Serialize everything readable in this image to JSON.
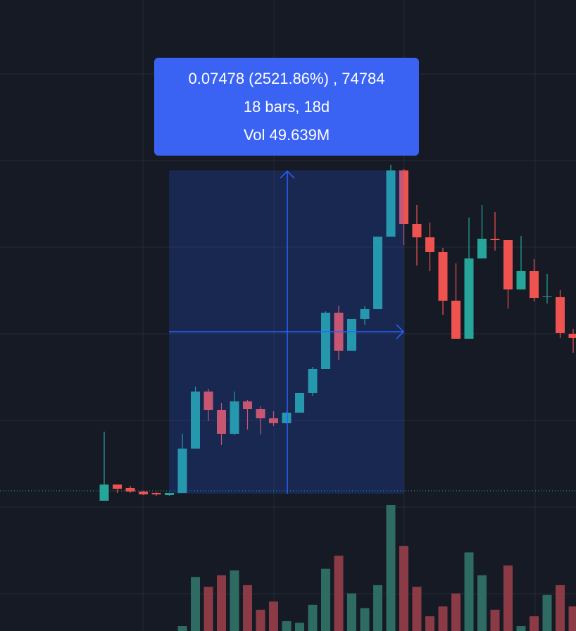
{
  "measure": {
    "line1": "0.07478 (2521.86%) , 74784",
    "line2": "18 bars, 18d",
    "line3": "Vol 49.639M"
  },
  "chart_data": {
    "type": "candlestick",
    "up_color": "#26a69a",
    "down_color": "#ef5350",
    "up_volume_color": "#2e6b63",
    "down_volume_color": "#8a3b45",
    "ylim": [
      -0.0003,
      0.11728
    ],
    "y2lim": [
      0,
      8
    ],
    "open": [
      0.00117,
      0.00493,
      0.00411,
      0.0033,
      0.00297,
      0.00248,
      0.00297,
      0.01326,
      0.02649,
      0.02224,
      0.01669,
      0.0242,
      0.0224,
      0.02028,
      0.01914,
      0.02159,
      0.02616,
      0.03171,
      0.04477,
      0.03596,
      0.04331,
      0.04559,
      0.06241,
      0.07776,
      0.06535,
      0.06225,
      0.05882,
      0.04755,
      0.03873,
      0.05735,
      0.06192,
      0.06159,
      0.05016,
      0.05441,
      0.04837,
      0.04837,
      0.03988
    ],
    "high": [
      0.01718,
      0.00493,
      0.0046,
      0.00346,
      0.00313,
      0.00297,
      0.01669,
      0.02763,
      0.02714,
      0.02387,
      0.02649,
      0.02453,
      0.02306,
      0.02191,
      0.02175,
      0.02616,
      0.0322,
      0.0451,
      0.04641,
      0.04331,
      0.04624,
      0.06241,
      0.07907,
      0.07809,
      0.06976,
      0.06568,
      0.0598,
      0.05621,
      0.06682,
      0.06976,
      0.06813,
      0.06159,
      0.06257,
      0.05719,
      0.05376,
      0.05,
      0.04102
    ],
    "low": [
      0.00117,
      0.00297,
      0.00297,
      0.00248,
      0.00232,
      0.00232,
      0.00297,
      0.01326,
      0.01963,
      0.01407,
      0.01636,
      0.01767,
      0.01652,
      0.01848,
      0.01914,
      0.02159,
      0.02551,
      0.03171,
      0.03383,
      0.03596,
      0.042,
      0.04559,
      0.06241,
      0.06045,
      0.05572,
      0.05441,
      0.04428,
      0.03873,
      0.03873,
      0.05735,
      0.05915,
      0.04575,
      0.05016,
      0.04739,
      0.0469,
      0.0389,
      0.03547
    ],
    "close": [
      0.00493,
      0.00395,
      0.0033,
      0.00264,
      0.00264,
      0.00297,
      0.01326,
      0.02649,
      0.02224,
      0.01669,
      0.0242,
      0.0224,
      0.02028,
      0.01914,
      0.02159,
      0.02616,
      0.03171,
      0.04477,
      0.03596,
      0.04331,
      0.04559,
      0.06241,
      0.07776,
      0.06535,
      0.06225,
      0.05882,
      0.04755,
      0.03873,
      0.05735,
      0.06192,
      0.06159,
      0.05016,
      0.05441,
      0.0482,
      0.04853,
      0.04004,
      0.0389
    ],
    "volume": [
      null,
      null,
      null,
      null,
      null,
      null,
      0.3,
      3.3,
      2.7,
      3.4,
      3.7,
      2.8,
      1.3,
      1.8,
      0.6,
      0.5,
      1.6,
      3.8,
      4.6,
      2.3,
      1.4,
      2.8,
      7.7,
      5.2,
      2.7,
      0.9,
      1.5,
      2.3,
      4.8,
      3.4,
      1.3,
      4.0,
      0.3,
      0.9,
      2.2,
      2.8,
      1.5
    ]
  }
}
